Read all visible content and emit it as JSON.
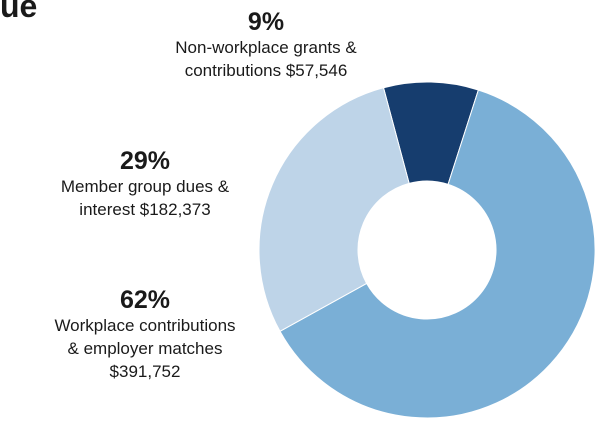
{
  "header": {
    "title_fragment": "ue"
  },
  "chart_data": {
    "type": "pie",
    "style": "donut",
    "slices": [
      {
        "percent_label": "9%",
        "percent": 9,
        "line1": "Non-workplace grants &",
        "line2": "contributions $57,546",
        "line3": "",
        "value": 57546,
        "color": "#163d6e"
      },
      {
        "percent_label": "62%",
        "percent": 62,
        "line1": "Workplace contributions",
        "line2": "& employer matches",
        "line3": "$391,752",
        "value": 391752,
        "color": "#7aafd6"
      },
      {
        "percent_label": "29%",
        "percent": 29,
        "line1": "Member group dues &",
        "line2": "interest $182,373",
        "line3": "",
        "value": 182373,
        "color": "#bed4e8"
      }
    ]
  }
}
